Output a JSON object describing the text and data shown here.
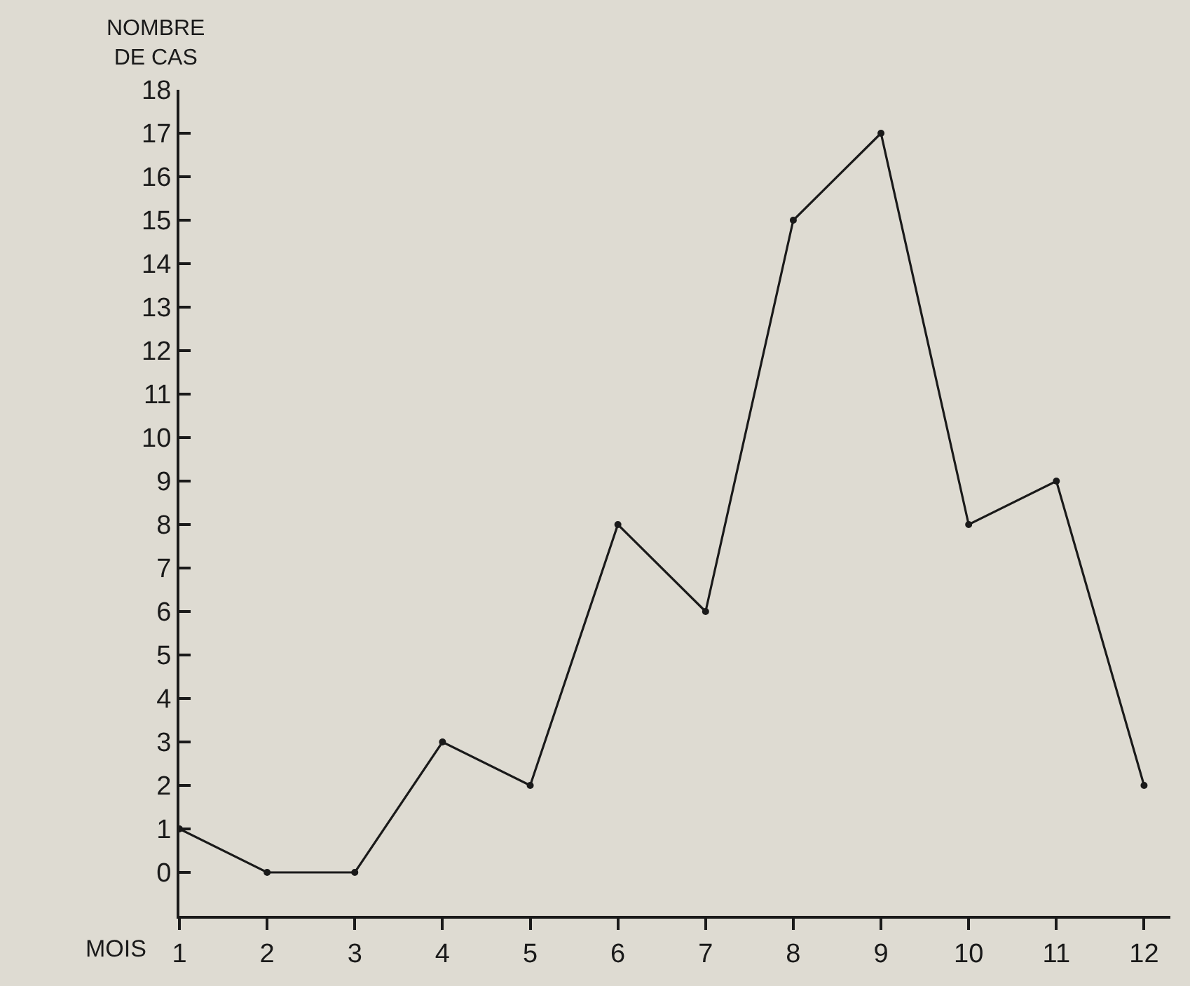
{
  "chart_data": {
    "type": "line",
    "xlabel": "MOIS",
    "ylabel": "NOMBRE\nDE CAS",
    "x": [
      1,
      2,
      3,
      4,
      5,
      6,
      7,
      8,
      9,
      10,
      11,
      12
    ],
    "series": [
      {
        "color": "#1a1a1a",
        "values": [
          1,
          0,
          0,
          3,
          2,
          8,
          6,
          15,
          17,
          8,
          9,
          2
        ]
      }
    ],
    "xlim": [
      1,
      12.3
    ],
    "xticks": [
      1,
      2,
      3,
      4,
      5,
      6,
      7,
      8,
      9,
      10,
      11,
      12
    ],
    "ylim": [
      -1,
      18
    ],
    "yticks": [
      0,
      1,
      2,
      3,
      4,
      5,
      6,
      7,
      8,
      9,
      10,
      11,
      12,
      13,
      14,
      15,
      16,
      17,
      18
    ],
    "grid": false,
    "marker": "circle",
    "line_style": "solid"
  }
}
